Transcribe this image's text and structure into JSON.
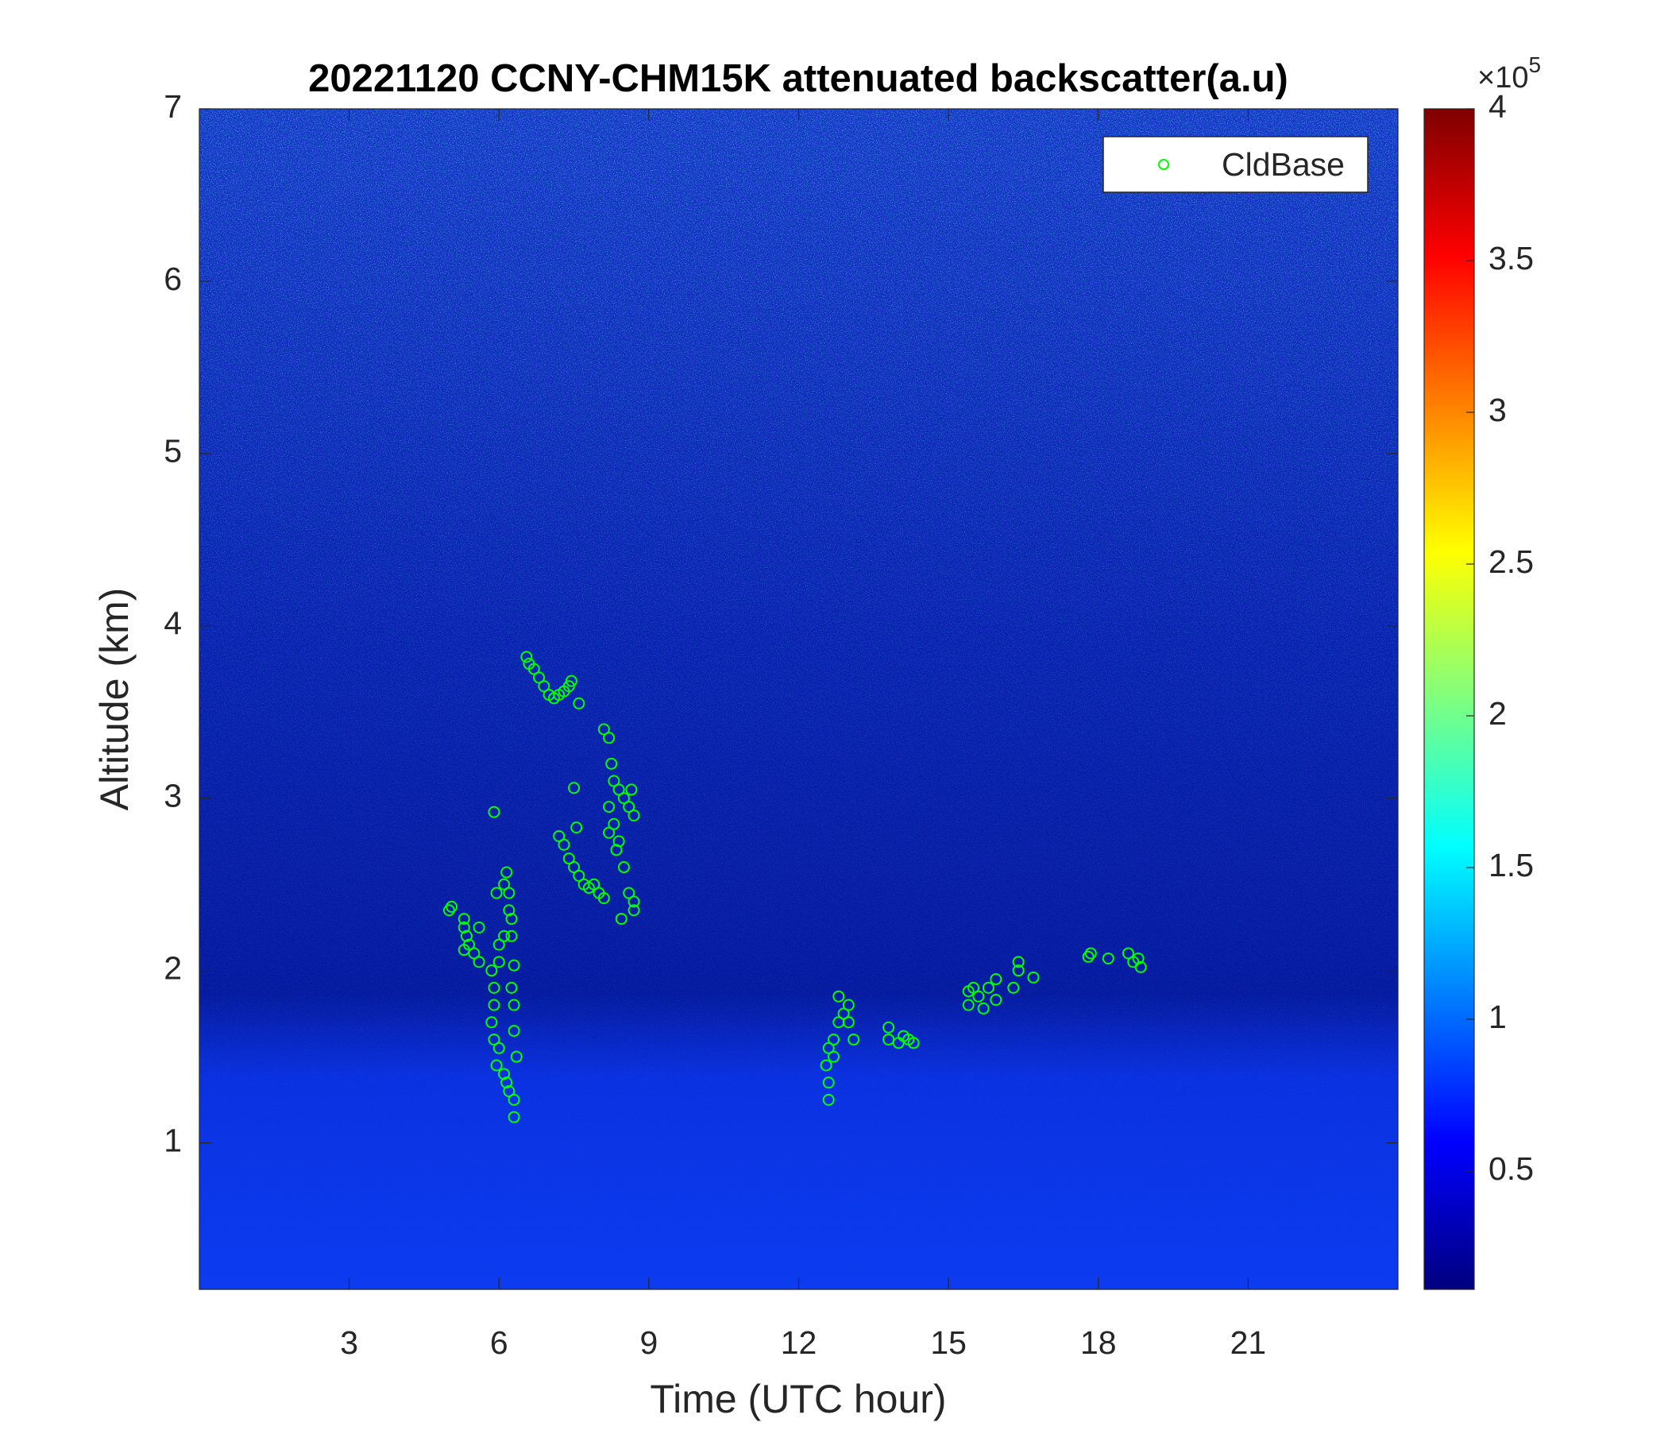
{
  "chart_data": {
    "type": "scatter",
    "title": "20221120 CCNY-CHM15K attenuated backscatter(a.u)",
    "xlabel": "Time (UTC hour)",
    "ylabel": "Altitude (km)",
    "xlim": [
      0,
      24
    ],
    "ylim": [
      0.15,
      7
    ],
    "xticks": [
      3,
      6,
      9,
      12,
      15,
      18,
      21
    ],
    "yticks": [
      1,
      2,
      3,
      4,
      5,
      6,
      7
    ],
    "legend": "upper right",
    "colorbar": {
      "colormap": "jet",
      "clim": [
        0.11,
        4
      ],
      "ticks": [
        0.5,
        1,
        1.5,
        2,
        2.5,
        3,
        3.5,
        4
      ],
      "multiplier": "×10",
      "exponent": 5
    },
    "series": [
      {
        "name": "CldBase",
        "color": "#00ff00",
        "marker": "o",
        "x": [
          5.0,
          5.05,
          5.3,
          5.3,
          5.35,
          5.4,
          5.5,
          5.6,
          5.6,
          5.3,
          5.9,
          5.95,
          6.1,
          6.15,
          6.2,
          6.2,
          6.25,
          6.25,
          6.1,
          6.0,
          6.0,
          5.85,
          5.9,
          5.9,
          5.85,
          5.9,
          6.0,
          5.95,
          6.1,
          6.2,
          6.3,
          6.3,
          6.35,
          6.3,
          6.3,
          6.25,
          6.3,
          6.15,
          6.55,
          6.6,
          6.7,
          6.8,
          6.9,
          7.0,
          7.1,
          7.2,
          7.3,
          7.4,
          7.45,
          7.6,
          7.5,
          7.55,
          7.2,
          7.3,
          7.4,
          7.5,
          7.6,
          7.7,
          7.8,
          7.9,
          8.1,
          8.0,
          8.1,
          8.2,
          8.25,
          8.3,
          8.4,
          8.5,
          8.6,
          8.7,
          8.65,
          8.2,
          8.3,
          8.4,
          8.5,
          8.6,
          8.7,
          8.7,
          8.45,
          8.2,
          8.35,
          12.6,
          12.6,
          12.55,
          12.6,
          12.7,
          12.8,
          12.9,
          12.8,
          13.0,
          13.1,
          12.7,
          13.0,
          13.8,
          13.8,
          14.0,
          14.1,
          14.2,
          14.3,
          15.4,
          15.4,
          15.5,
          15.6,
          15.7,
          15.8,
          15.95,
          15.95,
          16.3,
          16.4,
          16.4,
          16.7,
          17.8,
          17.85,
          18.2,
          18.6,
          18.7,
          18.8,
          18.85
        ],
        "y": [
          2.35,
          2.37,
          2.3,
          2.25,
          2.2,
          2.15,
          2.1,
          2.25,
          2.05,
          2.12,
          2.92,
          2.45,
          2.5,
          2.57,
          2.45,
          2.35,
          2.3,
          2.2,
          2.2,
          2.15,
          2.05,
          2.0,
          1.9,
          1.8,
          1.7,
          1.6,
          1.55,
          1.45,
          1.4,
          1.3,
          1.25,
          1.15,
          1.5,
          1.65,
          1.8,
          1.9,
          2.03,
          1.35,
          3.82,
          3.78,
          3.75,
          3.7,
          3.65,
          3.6,
          3.58,
          3.6,
          3.62,
          3.65,
          3.68,
          3.55,
          3.06,
          2.83,
          2.78,
          2.73,
          2.65,
          2.6,
          2.55,
          2.5,
          2.48,
          2.5,
          2.42,
          2.45,
          3.4,
          3.35,
          3.2,
          3.1,
          3.05,
          3.0,
          2.95,
          2.9,
          3.05,
          2.95,
          2.85,
          2.75,
          2.6,
          2.45,
          2.4,
          2.35,
          2.3,
          2.8,
          2.7,
          1.25,
          1.35,
          1.45,
          1.55,
          1.6,
          1.7,
          1.75,
          1.85,
          1.7,
          1.6,
          1.5,
          1.8,
          1.67,
          1.6,
          1.58,
          1.62,
          1.6,
          1.58,
          1.88,
          1.8,
          1.9,
          1.85,
          1.78,
          1.9,
          1.95,
          1.83,
          1.9,
          2.05,
          2.0,
          1.96,
          2.08,
          2.1,
          2.07,
          2.1,
          2.05,
          2.07,
          2.02
        ]
      }
    ]
  }
}
